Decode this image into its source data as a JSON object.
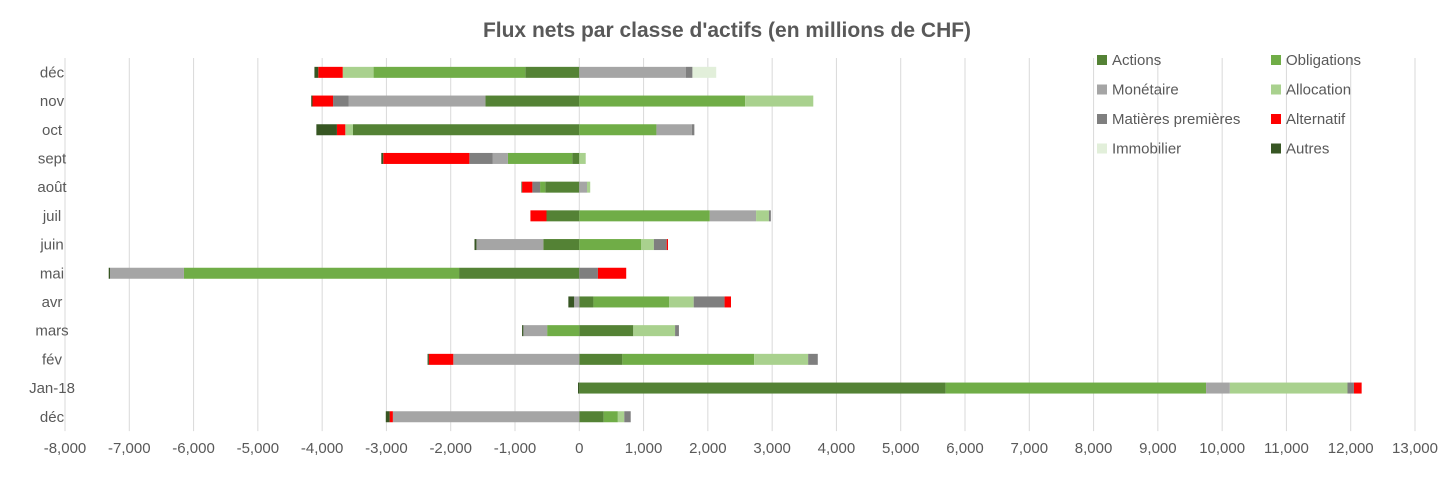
{
  "chart_data": {
    "type": "bar",
    "orientation": "horizontal",
    "stacked": true,
    "title": "Flux nets par classe d'actifs (en millions de CHF)",
    "xlabel": "",
    "ylabel": "",
    "xlim": [
      -8000,
      13000
    ],
    "x_ticks": [
      -8000,
      -7000,
      -6000,
      -5000,
      -4000,
      -3000,
      -2000,
      -1000,
      0,
      1000,
      2000,
      3000,
      4000,
      5000,
      6000,
      7000,
      8000,
      9000,
      10000,
      11000,
      12000,
      13000
    ],
    "x_tick_labels": [
      "-8,000",
      "-7,000",
      "-6,000",
      "-5,000",
      "-4,000",
      "-3,000",
      "-2,000",
      "-1,000",
      "0",
      "1,000",
      "2,000",
      "3,000",
      "4,000",
      "5,000",
      "6,000",
      "7,000",
      "8,000",
      "9,000",
      "10,000",
      "11,000",
      "12,000",
      "13,000"
    ],
    "grid": "vertical",
    "legend_position": "top-right",
    "categories": [
      "déc",
      "nov",
      "oct",
      "sept",
      "août",
      "juil",
      "juin",
      "mai",
      "avr",
      "mars",
      "fév",
      "Jan-18",
      "déc"
    ],
    "series": [
      {
        "name": "Actions",
        "color": "#548235",
        "values": [
          -840,
          -1460,
          -3520,
          -110,
          -530,
          -510,
          -560,
          -1870,
          220,
          840,
          670,
          5700,
          380
        ]
      },
      {
        "name": "Obligations",
        "color": "#70AD47",
        "values": [
          -2360,
          2580,
          1200,
          -1000,
          -80,
          2030,
          960,
          -4280,
          1180,
          -500,
          2050,
          4050,
          220
        ]
      },
      {
        "name": "Monétaire",
        "color": "#A5A5A5",
        "values": [
          1660,
          -2130,
          550,
          -240,
          120,
          720,
          -1040,
          -1150,
          -80,
          -370,
          -1960,
          370,
          -2900
        ]
      },
      {
        "name": "Allocation",
        "color": "#A9D18E",
        "values": [
          -480,
          1060,
          -120,
          100,
          50,
          200,
          200,
          0,
          380,
          650,
          840,
          1830,
          100
        ]
      },
      {
        "name": "Matières premières",
        "color": "#7F7F7F",
        "values": [
          100,
          -240,
          40,
          -360,
          -120,
          30,
          200,
          290,
          480,
          60,
          150,
          100,
          100
        ]
      },
      {
        "name": "Alternatif",
        "color": "#FF0000",
        "values": [
          -380,
          -320,
          -130,
          -1340,
          -160,
          -250,
          20,
          440,
          100,
          0,
          -380,
          120,
          -50
        ]
      },
      {
        "name": "Immobilier",
        "color": "#E2EFDA",
        "values": [
          370,
          0,
          0,
          0,
          0,
          0,
          0,
          0,
          0,
          0,
          0,
          0,
          0
        ]
      },
      {
        "name": "Autres",
        "color": "#375623",
        "values": [
          -60,
          -20,
          -320,
          -30,
          -10,
          0,
          -30,
          -20,
          -90,
          -20,
          -20,
          -20,
          -60
        ]
      }
    ]
  }
}
